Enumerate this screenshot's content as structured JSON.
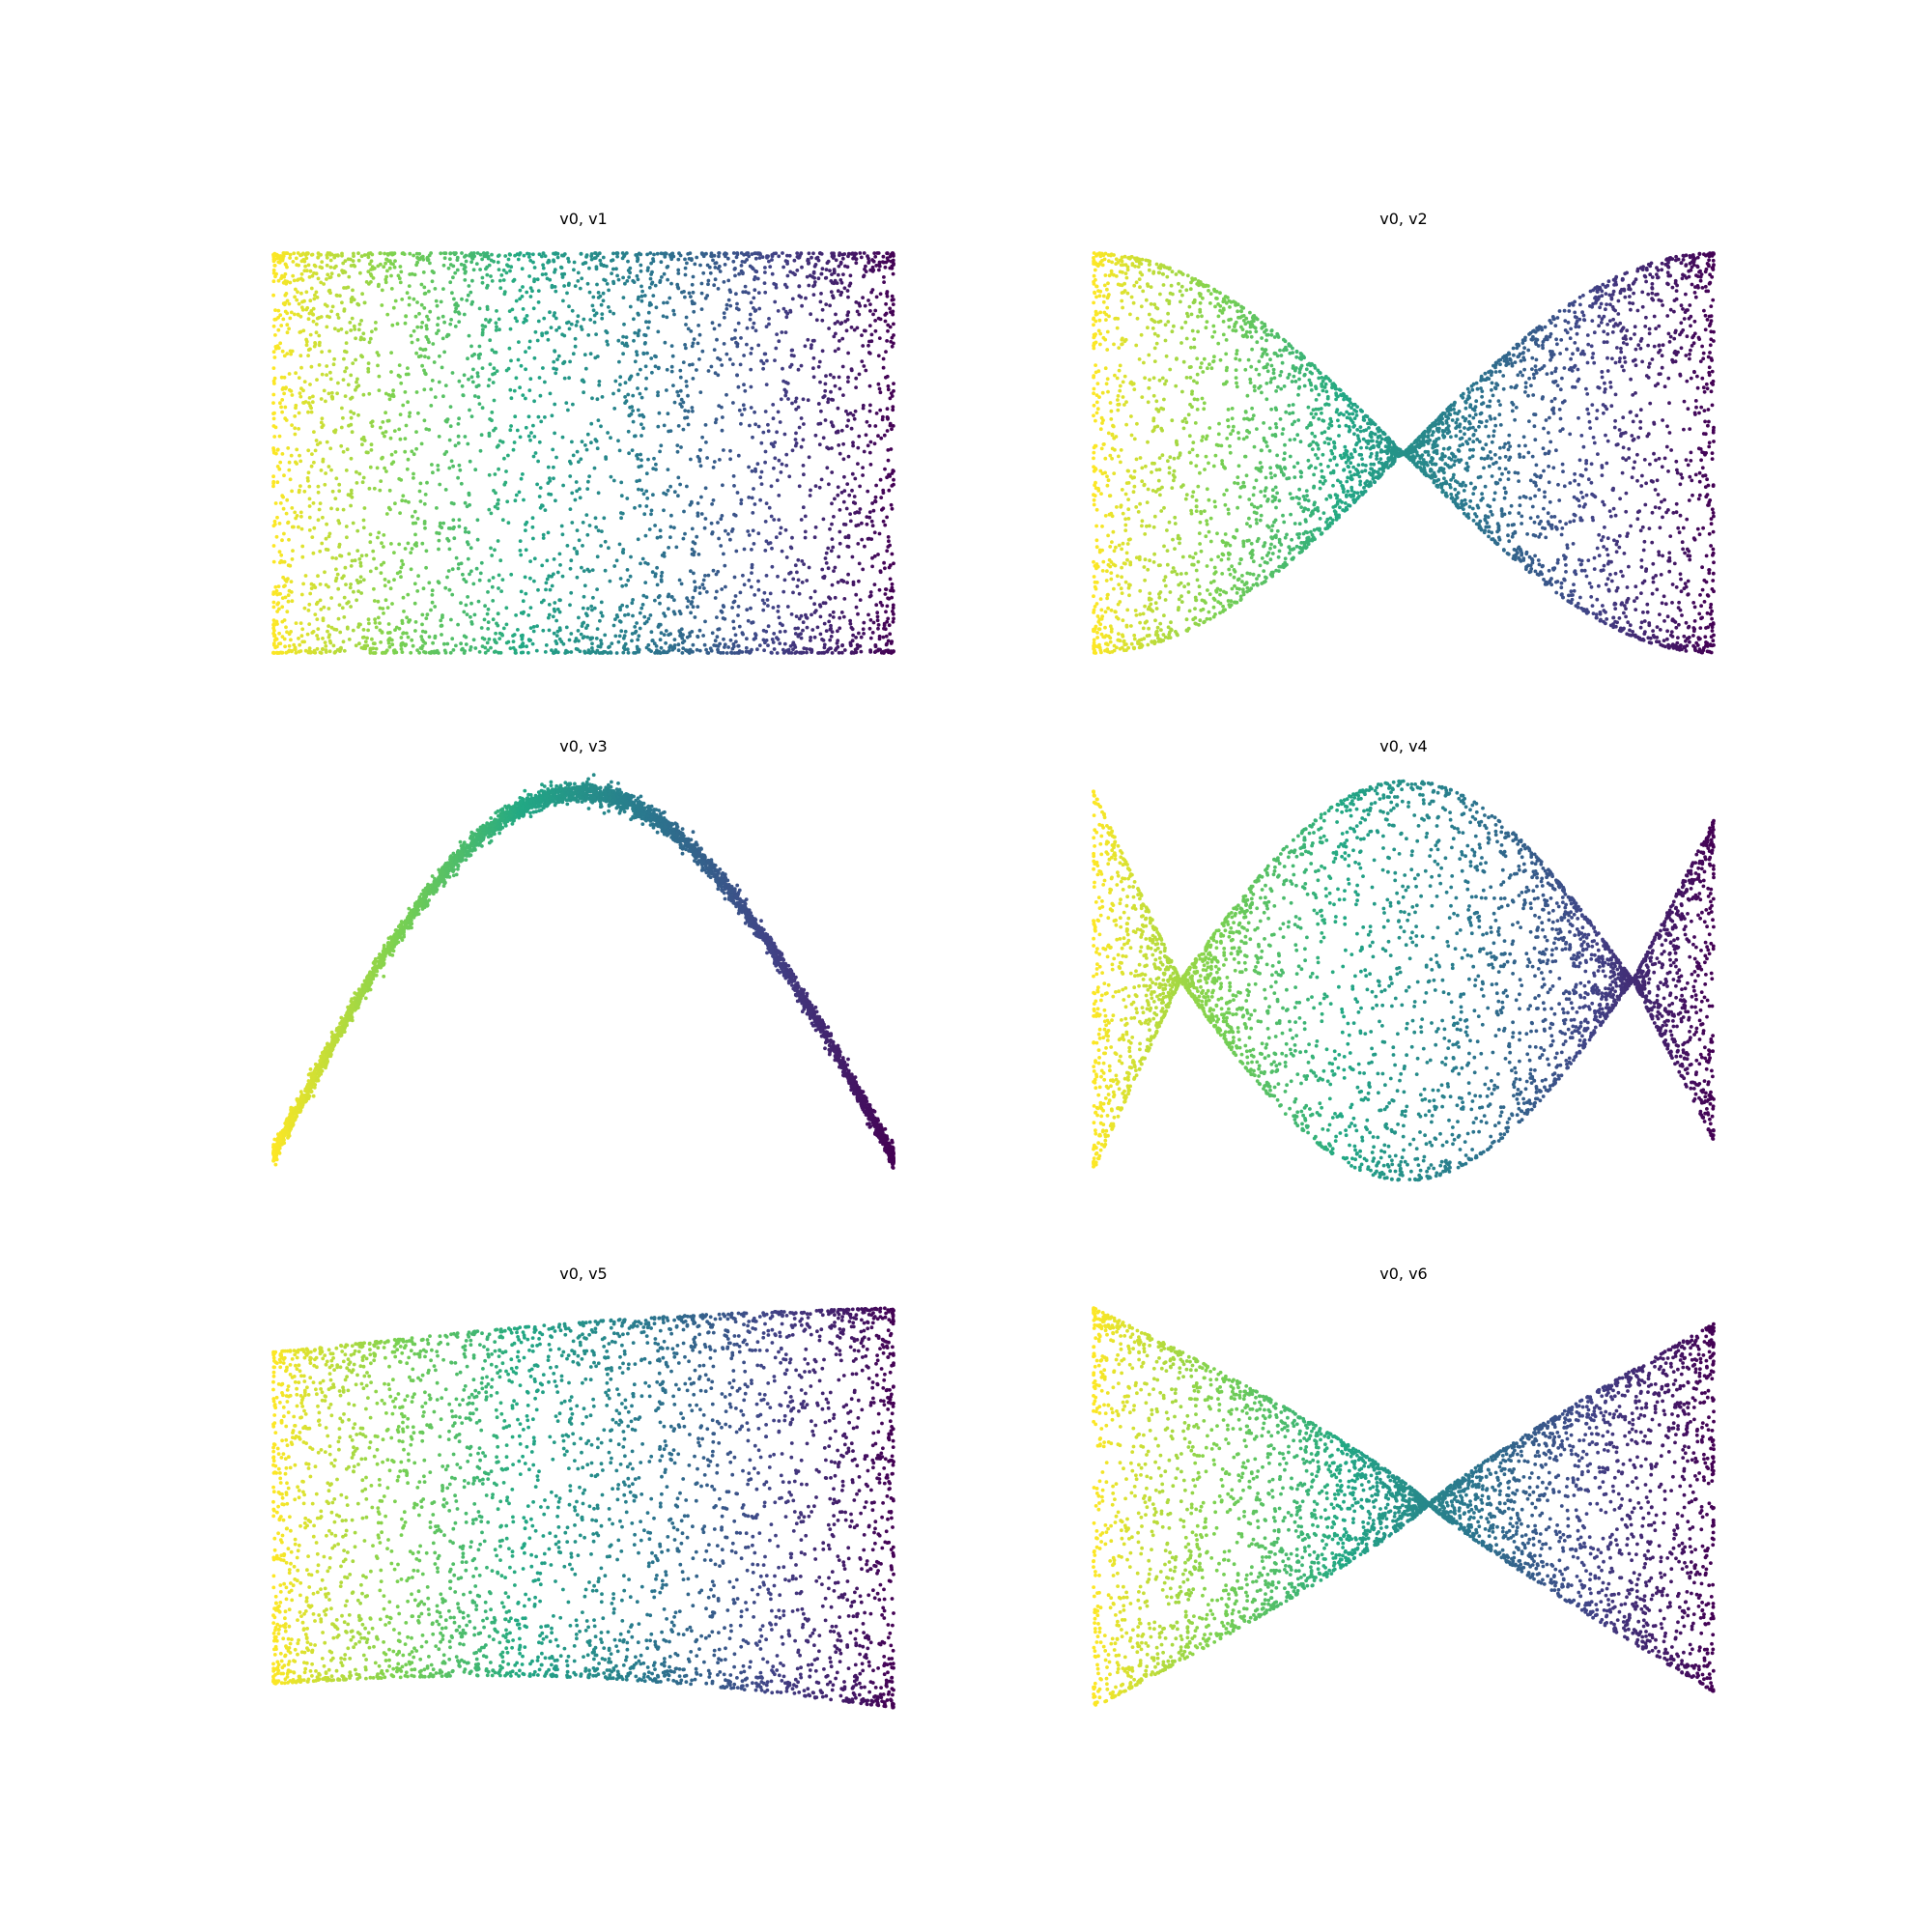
{
  "figure": {
    "background": "#ffffff",
    "colormap": "viridis",
    "colormap_stops": [
      "#440154",
      "#414487",
      "#2a788e",
      "#22a884",
      "#7ad151",
      "#fde725"
    ],
    "color_direction": "yellow at left (min v0), purple at right (max v0)",
    "axes_visible": false,
    "point_count_per_panel": 4000
  },
  "chart_data": [
    {
      "type": "scatter",
      "title": "v0, v1",
      "grid": "off",
      "shape": "rectangle",
      "xlim": [
        0,
        1
      ],
      "ylim": [
        -1,
        1
      ],
      "description_points": [
        [
          0,
          -1
        ],
        [
          0,
          1
        ],
        [
          1,
          1
        ],
        [
          1,
          -1
        ]
      ]
    },
    {
      "type": "scatter",
      "title": "v0, v2",
      "grid": "off",
      "shape": "bowtie",
      "xlim": [
        0,
        1
      ],
      "ylim": [
        -1,
        1
      ],
      "crossing_x": 0.5,
      "description_points": [
        [
          0,
          1
        ],
        [
          0.5,
          0
        ],
        [
          1,
          1
        ],
        [
          1,
          -1
        ],
        [
          0.5,
          0
        ],
        [
          0,
          -1
        ]
      ]
    },
    {
      "type": "scatter",
      "title": "v0, v3",
      "grid": "off",
      "shape": "arch",
      "xlim": [
        0,
        1
      ],
      "ylim": [
        0,
        1
      ],
      "description_points": [
        [
          0,
          0
        ],
        [
          0.25,
          0.78
        ],
        [
          0.5,
          1
        ],
        [
          0.75,
          0.7
        ],
        [
          1,
          0.06
        ]
      ]
    },
    {
      "type": "scatter",
      "title": "v0, v4",
      "grid": "off",
      "shape": "double-bowtie",
      "xlim": [
        0,
        1
      ],
      "ylim": [
        -1,
        1
      ],
      "crossing_x": [
        0.14,
        0.87
      ],
      "description_points": [
        [
          0,
          0.9
        ],
        [
          0.14,
          0
        ],
        [
          0.5,
          1
        ],
        [
          0.87,
          0
        ],
        [
          1,
          0.8
        ],
        [
          1,
          -0.8
        ],
        [
          0.87,
          0
        ],
        [
          0.5,
          -1
        ],
        [
          0.14,
          0
        ],
        [
          0,
          -0.95
        ]
      ]
    },
    {
      "type": "scatter",
      "title": "v0, v5",
      "grid": "off",
      "shape": "warped-rectangle",
      "xlim": [
        0,
        1
      ],
      "ylim": [
        -1,
        1
      ],
      "description_points": [
        [
          0,
          0.78
        ],
        [
          0.35,
          0.9
        ],
        [
          1,
          1
        ],
        [
          1,
          -1
        ],
        [
          0.35,
          -0.85
        ],
        [
          0,
          -0.88
        ]
      ]
    },
    {
      "type": "scatter",
      "title": "v0, v6",
      "grid": "off",
      "shape": "skewed-bowtie",
      "xlim": [
        0,
        1
      ],
      "ylim": [
        -1,
        1
      ],
      "crossing_x": 0.54,
      "description_points": [
        [
          0,
          1
        ],
        [
          0.54,
          0
        ],
        [
          1,
          0.95
        ],
        [
          1,
          -0.88
        ],
        [
          0.54,
          0
        ],
        [
          0,
          -1
        ]
      ]
    }
  ]
}
